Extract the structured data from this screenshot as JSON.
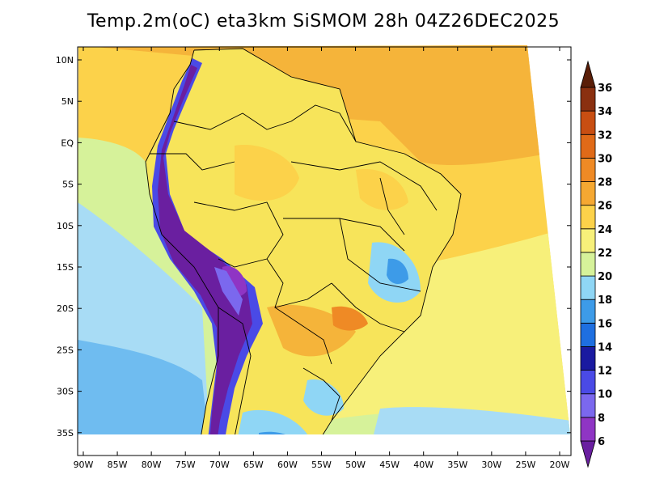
{
  "title": "Temp.2m(oC) eta3km SiSMOM 28h 04Z26DEC2025",
  "map": {
    "lon_labels": [
      "90W",
      "85W",
      "80W",
      "75W",
      "70W",
      "65W",
      "60W",
      "55W",
      "50W",
      "45W",
      "40W",
      "35W",
      "30W",
      "25W",
      "20W"
    ],
    "lat_labels": [
      "10N",
      "5N",
      "EQ",
      "5S",
      "10S",
      "15S",
      "20S",
      "25S",
      "30S",
      "35S"
    ]
  },
  "colorbar": {
    "levels": [
      "6",
      "8",
      "10",
      "12",
      "14",
      "16",
      "18",
      "20",
      "22",
      "24",
      "26",
      "28",
      "30",
      "32",
      "34",
      "36"
    ],
    "colors": [
      "#6a1fa0",
      "#8f35c4",
      "#7b68ee",
      "#4a4ae6",
      "#1a1aa0",
      "#1e6fe0",
      "#3d9be8",
      "#8fd6f5",
      "#d6f29a",
      "#f7f07a",
      "#fcd24a",
      "#f5a832",
      "#ef8a25",
      "#e06a18",
      "#c84e12",
      "#8a3010",
      "#5a1e08"
    ]
  },
  "field_colors": {
    "ocean_warm": "#f5b43a",
    "ocean_mid": "#fcd24a",
    "ocean_cool": "#f7f07a",
    "ocean_cold": "#d6f29a",
    "ocean_colder": "#a8dcf5",
    "ocean_coldest": "#6fbcf0",
    "land_yellow": "#f7e45a",
    "andes_purple": "#6a1fa0",
    "andes_blue": "#4a4ae6"
  }
}
